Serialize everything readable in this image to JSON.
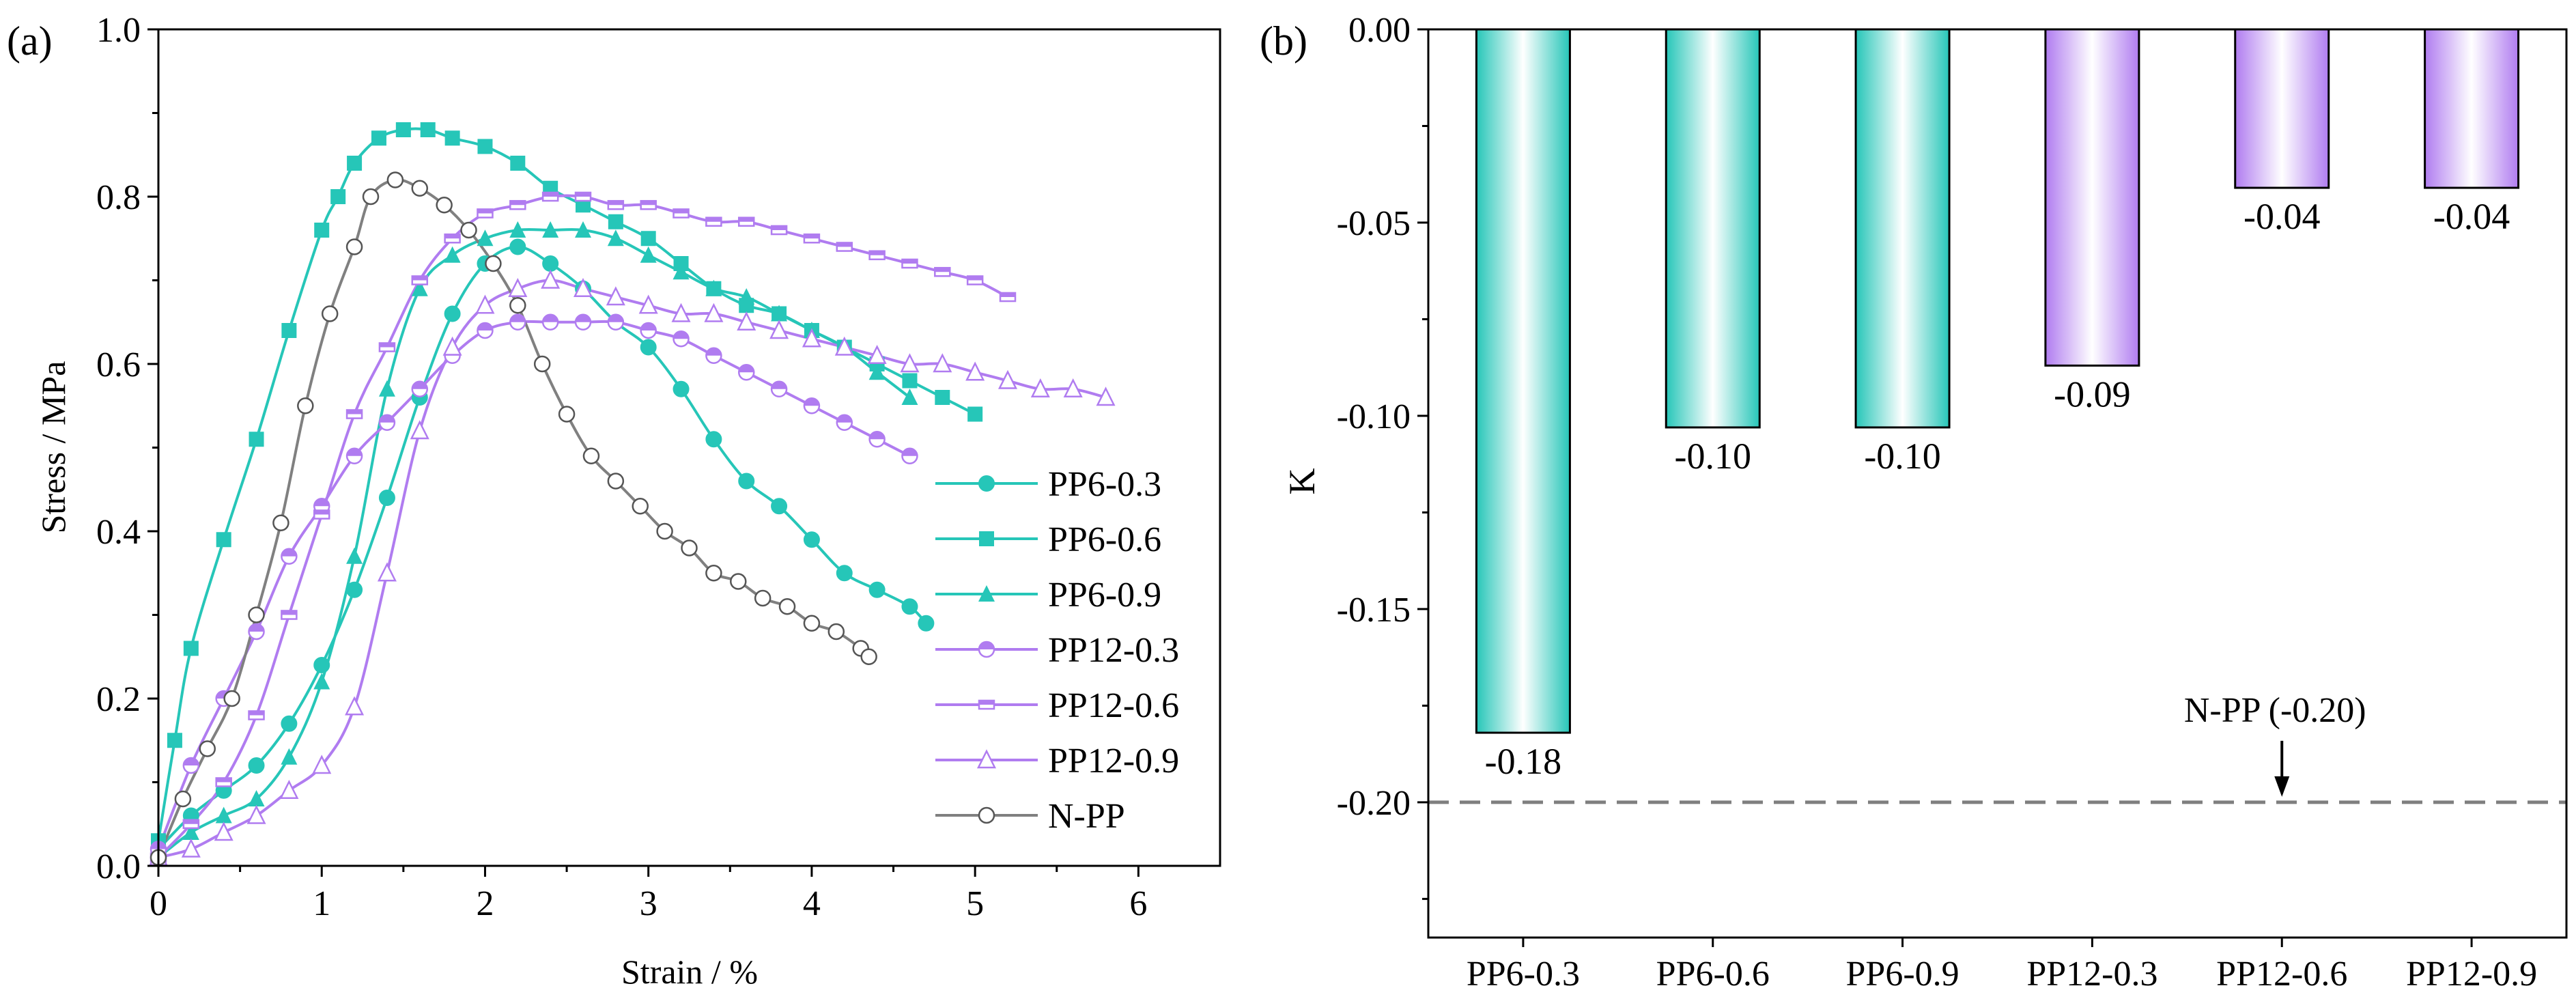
{
  "colors": {
    "teal": "#26C6B8",
    "purple": "#B07CF0",
    "gray": "#808080",
    "axis": "#000000",
    "dashed": "#7f7f7f"
  },
  "chart_data": [
    {
      "panel_label": "(a)",
      "type": "line",
      "xlabel": "Strain / %",
      "ylabel": "Stress / MPa",
      "xlim": [
        0,
        6.5
      ],
      "ylim": [
        0,
        1.0
      ],
      "xticks": [
        "0",
        "1",
        "2",
        "3",
        "4",
        "5",
        "6"
      ],
      "yticks": [
        "0.0",
        "0.2",
        "0.4",
        "0.6",
        "0.8",
        "1.0"
      ],
      "legend_position": "center-right",
      "series": [
        {
          "name": "PP6-0.3",
          "color": "teal",
          "marker": "circle",
          "x": [
            0,
            0.2,
            0.4,
            0.6,
            0.8,
            1.0,
            1.2,
            1.4,
            1.6,
            1.8,
            2.0,
            2.2,
            2.4,
            2.6,
            2.8,
            3.0,
            3.2,
            3.4,
            3.6,
            3.8,
            4.0,
            4.2,
            4.4,
            4.6,
            4.7
          ],
          "y": [
            0.02,
            0.06,
            0.09,
            0.12,
            0.17,
            0.24,
            0.33,
            0.44,
            0.56,
            0.66,
            0.72,
            0.74,
            0.72,
            0.69,
            0.65,
            0.62,
            0.57,
            0.51,
            0.46,
            0.43,
            0.39,
            0.35,
            0.33,
            0.31,
            0.29
          ]
        },
        {
          "name": "PP6-0.6",
          "color": "teal",
          "marker": "square",
          "x": [
            0,
            0.1,
            0.2,
            0.4,
            0.6,
            0.8,
            1.0,
            1.1,
            1.2,
            1.35,
            1.5,
            1.65,
            1.8,
            2.0,
            2.2,
            2.4,
            2.6,
            2.8,
            3.0,
            3.2,
            3.4,
            3.6,
            3.8,
            4.0,
            4.2,
            4.4,
            4.6,
            4.8,
            5.0
          ],
          "y": [
            0.03,
            0.15,
            0.26,
            0.39,
            0.51,
            0.64,
            0.76,
            0.8,
            0.84,
            0.87,
            0.88,
            0.88,
            0.87,
            0.86,
            0.84,
            0.81,
            0.79,
            0.77,
            0.75,
            0.72,
            0.69,
            0.67,
            0.66,
            0.64,
            0.62,
            0.6,
            0.58,
            0.56,
            0.54
          ]
        },
        {
          "name": "PP6-0.9",
          "color": "teal",
          "marker": "triangle",
          "x": [
            0,
            0.2,
            0.4,
            0.6,
            0.8,
            1.0,
            1.2,
            1.4,
            1.6,
            1.8,
            2.0,
            2.2,
            2.4,
            2.6,
            2.8,
            3.0,
            3.2,
            3.4,
            3.6,
            3.8,
            4.0,
            4.2,
            4.4,
            4.6
          ],
          "y": [
            0.01,
            0.04,
            0.06,
            0.08,
            0.13,
            0.22,
            0.37,
            0.57,
            0.69,
            0.73,
            0.75,
            0.76,
            0.76,
            0.76,
            0.75,
            0.73,
            0.71,
            0.69,
            0.68,
            0.66,
            0.64,
            0.62,
            0.59,
            0.56
          ]
        },
        {
          "name": "PP12-0.3",
          "color": "purple",
          "marker": "half-circle",
          "x": [
            0,
            0.2,
            0.4,
            0.6,
            0.8,
            1.0,
            1.2,
            1.4,
            1.6,
            1.8,
            2.0,
            2.2,
            2.4,
            2.6,
            2.8,
            3.0,
            3.2,
            3.4,
            3.6,
            3.8,
            4.0,
            4.2,
            4.4,
            4.6
          ],
          "y": [
            0.02,
            0.12,
            0.2,
            0.28,
            0.37,
            0.43,
            0.49,
            0.53,
            0.57,
            0.61,
            0.64,
            0.65,
            0.65,
            0.65,
            0.65,
            0.64,
            0.63,
            0.61,
            0.59,
            0.57,
            0.55,
            0.53,
            0.51,
            0.49
          ]
        },
        {
          "name": "PP12-0.6",
          "color": "purple",
          "marker": "half-square",
          "x": [
            0,
            0.2,
            0.4,
            0.6,
            0.8,
            1.0,
            1.2,
            1.4,
            1.6,
            1.8,
            2.0,
            2.2,
            2.4,
            2.6,
            2.8,
            3.0,
            3.2,
            3.4,
            3.6,
            3.8,
            4.0,
            4.2,
            4.4,
            4.6,
            4.8,
            5.0,
            5.2
          ],
          "y": [
            0.01,
            0.05,
            0.1,
            0.18,
            0.3,
            0.42,
            0.54,
            0.62,
            0.7,
            0.75,
            0.78,
            0.79,
            0.8,
            0.8,
            0.79,
            0.79,
            0.78,
            0.77,
            0.77,
            0.76,
            0.75,
            0.74,
            0.73,
            0.72,
            0.71,
            0.7,
            0.68
          ]
        },
        {
          "name": "PP12-0.9",
          "color": "purple",
          "marker": "open-triangle",
          "x": [
            0,
            0.2,
            0.4,
            0.6,
            0.8,
            1.0,
            1.2,
            1.4,
            1.6,
            1.8,
            2.0,
            2.2,
            2.4,
            2.6,
            2.8,
            3.0,
            3.2,
            3.4,
            3.6,
            3.8,
            4.0,
            4.2,
            4.4,
            4.6,
            4.8,
            5.0,
            5.2,
            5.4,
            5.6,
            5.8
          ],
          "y": [
            0.01,
            0.02,
            0.04,
            0.06,
            0.09,
            0.12,
            0.19,
            0.35,
            0.52,
            0.62,
            0.67,
            0.69,
            0.7,
            0.69,
            0.68,
            0.67,
            0.66,
            0.66,
            0.65,
            0.64,
            0.63,
            0.62,
            0.61,
            0.6,
            0.6,
            0.59,
            0.58,
            0.57,
            0.57,
            0.56
          ]
        },
        {
          "name": "N-PP",
          "color": "gray",
          "marker": "open-circle",
          "x": [
            0,
            0.15,
            0.3,
            0.45,
            0.6,
            0.75,
            0.9,
            1.05,
            1.2,
            1.3,
            1.45,
            1.6,
            1.75,
            1.9,
            2.05,
            2.2,
            2.35,
            2.5,
            2.65,
            2.8,
            2.95,
            3.1,
            3.25,
            3.4,
            3.55,
            3.7,
            3.85,
            4.0,
            4.15,
            4.3,
            4.35
          ],
          "y": [
            0.01,
            0.08,
            0.14,
            0.2,
            0.3,
            0.41,
            0.55,
            0.66,
            0.74,
            0.8,
            0.82,
            0.81,
            0.79,
            0.76,
            0.72,
            0.67,
            0.6,
            0.54,
            0.49,
            0.46,
            0.43,
            0.4,
            0.38,
            0.35,
            0.34,
            0.32,
            0.31,
            0.29,
            0.28,
            0.26,
            0.25
          ]
        }
      ]
    },
    {
      "panel_label": "(b)",
      "type": "bar",
      "xlabel": "",
      "ylabel": "K",
      "ylim": [
        -0.235,
        0.0
      ],
      "yticks": [
        "0.00",
        "-0.05",
        "-0.10",
        "-0.15",
        "-0.20"
      ],
      "categories": [
        "PP6-0.3",
        "PP6-0.6",
        "PP6-0.9",
        "PP12-0.3",
        "PP12-0.6",
        "PP12-0.9"
      ],
      "values": [
        -0.182,
        -0.103,
        -0.103,
        -0.087,
        -0.041,
        -0.041
      ],
      "value_labels": [
        "-0.18",
        "-0.10",
        "-0.10",
        "-0.09",
        "-0.04",
        "-0.04"
      ],
      "bar_colors": [
        "teal",
        "teal",
        "teal",
        "purple",
        "purple",
        "purple"
      ],
      "reference_line": {
        "value": -0.2,
        "label": "N-PP (-0.20)",
        "arrow_category": "PP12-0.6"
      }
    }
  ]
}
